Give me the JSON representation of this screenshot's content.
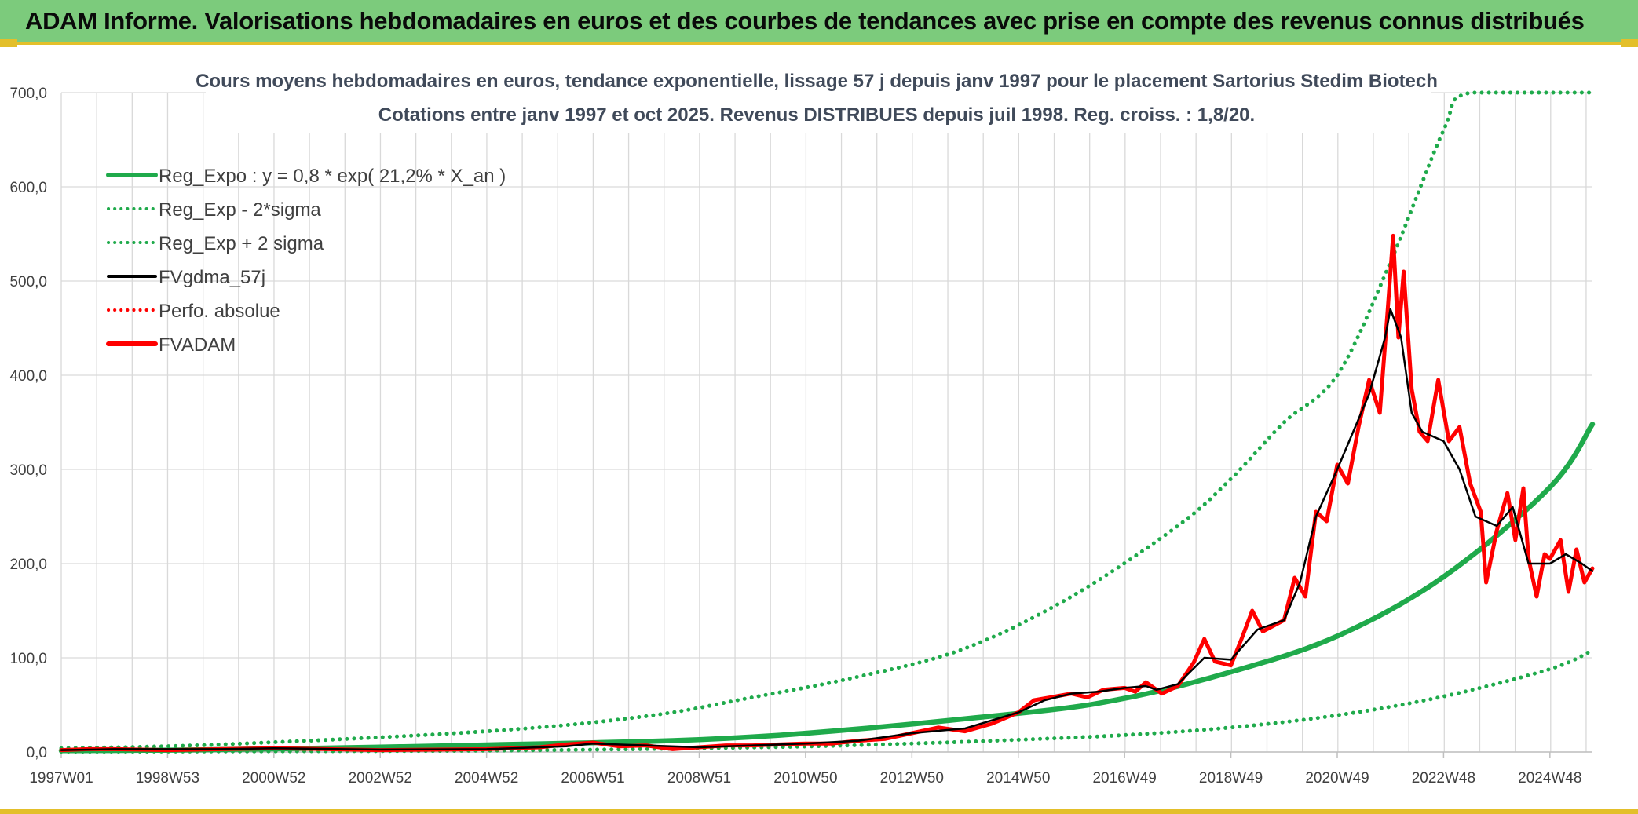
{
  "header": {
    "title": "ADAM Informe. Valorisations hebdomadaires en euros et des courbes de tendances avec prise en compte des revenus connus distribués"
  },
  "colors": {
    "header_bg": "#7ccb7c",
    "accent": "#e3bf2a",
    "reg_green": "#1faa4b",
    "price_red": "#ff0000",
    "smooth_black": "#000000"
  },
  "chart_data": {
    "type": "line",
    "title_line1": "Cours moyens hebdomadaires en euros, tendance exponentielle, lissage 57 j depuis janv 1997 pour le placement Sartorius Stedim Biotech",
    "title_line2": "Cotations entre janv 1997 et oct 2025. Revenus DISTRIBUES depuis juil 1998. Reg. croiss. : 1,8/20.",
    "xlabel": "",
    "ylabel": "",
    "ylim": [
      0,
      700
    ],
    "xlim": [
      1997.0,
      2025.8
    ],
    "y_ticks": [
      "0,0",
      "100,0",
      "200,0",
      "300,0",
      "400,0",
      "500,0",
      "600,0",
      "700,0"
    ],
    "x_ticks": [
      {
        "label": "1997W01",
        "x": 1997.0
      },
      {
        "label": "1998W53",
        "x": 1999.0
      },
      {
        "label": "2000W52",
        "x": 2001.0
      },
      {
        "label": "2002W52",
        "x": 2003.0
      },
      {
        "label": "2004W52",
        "x": 2005.0
      },
      {
        "label": "2006W51",
        "x": 2007.0
      },
      {
        "label": "2008W51",
        "x": 2009.0
      },
      {
        "label": "2010W50",
        "x": 2011.0
      },
      {
        "label": "2012W50",
        "x": 2013.0
      },
      {
        "label": "2014W50",
        "x": 2015.0
      },
      {
        "label": "2016W49",
        "x": 2017.0
      },
      {
        "label": "2018W49",
        "x": 2019.0
      },
      {
        "label": "2020W49",
        "x": 2021.0
      },
      {
        "label": "2022W48",
        "x": 2023.0
      },
      {
        "label": "2024W48",
        "x": 2025.0
      }
    ],
    "legend_position": "top-left",
    "legend": [
      {
        "label": "Reg_Expo : y = 0,8 * exp( 21,2% *  X_an )",
        "style": "solid-thick",
        "color": "#1faa4b"
      },
      {
        "label": "Reg_Exp - 2*sigma",
        "style": "dotted",
        "color": "#1faa4b"
      },
      {
        "label": "Reg_Exp + 2 sigma",
        "style": "dotted",
        "color": "#1faa4b"
      },
      {
        "label": "FVgdma_57j",
        "style": "solid",
        "color": "#000000"
      },
      {
        "label": "Perfo. absolue",
        "style": "dotted",
        "color": "#ff0000"
      },
      {
        "label": "FVADAM",
        "style": "solid-thick",
        "color": "#ff0000"
      }
    ],
    "series": [
      {
        "name": "Reg_Expo",
        "formula": "0.8*exp(0.212*(year-1996.3))",
        "points": [
          [
            1997.0,
            1.4
          ],
          [
            2000.0,
            2.6
          ],
          [
            2005.0,
            7.5
          ],
          [
            2010.0,
            16
          ],
          [
            2015.0,
            41
          ],
          [
            2017.0,
            57
          ],
          [
            2019.0,
            85
          ],
          [
            2021.0,
            123
          ],
          [
            2023.0,
            186
          ],
          [
            2025.0,
            281
          ],
          [
            2025.8,
            348
          ]
        ]
      },
      {
        "name": "Reg_Exp - 2*sigma",
        "points": [
          [
            1997.0,
            0.3
          ],
          [
            2005.0,
            1.5
          ],
          [
            2010.0,
            4.8
          ],
          [
            2013.0,
            9
          ],
          [
            2015.0,
            13
          ],
          [
            2017.0,
            18
          ],
          [
            2019.0,
            26
          ],
          [
            2021.0,
            39
          ],
          [
            2023.0,
            59
          ],
          [
            2025.0,
            88
          ],
          [
            2025.8,
            108
          ]
        ]
      },
      {
        "name": "Reg_Exp + 2 sigma",
        "points": [
          [
            1997.0,
            4
          ],
          [
            2000.0,
            8
          ],
          [
            2005.0,
            22
          ],
          [
            2008.0,
            38
          ],
          [
            2010.0,
            58
          ],
          [
            2012.0,
            80
          ],
          [
            2014.0,
            110
          ],
          [
            2016.0,
            165
          ],
          [
            2018.0,
            240
          ],
          [
            2019.0,
            290
          ],
          [
            2020.0,
            350
          ],
          [
            2021.0,
            400
          ],
          [
            2022.0,
            520
          ],
          [
            2023.0,
            660
          ],
          [
            2023.5,
            700
          ],
          [
            2025.8,
            700
          ]
        ]
      },
      {
        "name": "FVgdma_57j",
        "points": [
          [
            1997.0,
            2
          ],
          [
            1998.0,
            3
          ],
          [
            2000.0,
            3
          ],
          [
            2001.0,
            4
          ],
          [
            2003.0,
            2.5
          ],
          [
            2005.0,
            3
          ],
          [
            2006.5,
            6
          ],
          [
            2007.0,
            9
          ],
          [
            2008.0,
            7
          ],
          [
            2009.0,
            5
          ],
          [
            2010.0,
            7
          ],
          [
            2011.0,
            9
          ],
          [
            2012.0,
            12
          ],
          [
            2013.0,
            20
          ],
          [
            2014.0,
            25
          ],
          [
            2015.0,
            42
          ],
          [
            2015.5,
            55
          ],
          [
            2016.0,
            62
          ],
          [
            2016.5,
            64
          ],
          [
            2017.0,
            68
          ],
          [
            2017.4,
            70
          ],
          [
            2017.6,
            66
          ],
          [
            2018.0,
            72
          ],
          [
            2018.5,
            100
          ],
          [
            2019.0,
            98
          ],
          [
            2019.5,
            130
          ],
          [
            2020.0,
            140
          ],
          [
            2020.3,
            180
          ],
          [
            2020.6,
            250
          ],
          [
            2021.0,
            300
          ],
          [
            2021.3,
            340
          ],
          [
            2021.6,
            380
          ],
          [
            2021.9,
            440
          ],
          [
            2022.0,
            470
          ],
          [
            2022.2,
            440
          ],
          [
            2022.4,
            360
          ],
          [
            2022.6,
            340
          ],
          [
            2023.0,
            330
          ],
          [
            2023.3,
            300
          ],
          [
            2023.6,
            250
          ],
          [
            2024.0,
            240
          ],
          [
            2024.3,
            260
          ],
          [
            2024.6,
            200
          ],
          [
            2025.0,
            200
          ],
          [
            2025.3,
            210
          ],
          [
            2025.6,
            200
          ],
          [
            2025.8,
            192
          ]
        ]
      },
      {
        "name": "FVADAM",
        "points": [
          [
            1997.0,
            2
          ],
          [
            1997.5,
            3
          ],
          [
            1998.0,
            3
          ],
          [
            1999.0,
            2
          ],
          [
            2000.0,
            3
          ],
          [
            2001.0,
            4
          ],
          [
            2002.0,
            3
          ],
          [
            2003.0,
            2
          ],
          [
            2004.0,
            2.5
          ],
          [
            2005.0,
            3
          ],
          [
            2006.0,
            5
          ],
          [
            2006.5,
            8
          ],
          [
            2007.0,
            10
          ],
          [
            2007.5,
            6
          ],
          [
            2008.0,
            7
          ],
          [
            2008.5,
            3
          ],
          [
            2009.0,
            5
          ],
          [
            2009.5,
            7
          ],
          [
            2010.0,
            7
          ],
          [
            2010.5,
            8
          ],
          [
            2011.0,
            9
          ],
          [
            2011.5,
            9
          ],
          [
            2012.0,
            12
          ],
          [
            2012.5,
            14
          ],
          [
            2013.0,
            20
          ],
          [
            2013.5,
            26
          ],
          [
            2014.0,
            22
          ],
          [
            2014.5,
            30
          ],
          [
            2015.0,
            42
          ],
          [
            2015.3,
            55
          ],
          [
            2015.6,
            58
          ],
          [
            2016.0,
            62
          ],
          [
            2016.3,
            58
          ],
          [
            2016.6,
            66
          ],
          [
            2017.0,
            68
          ],
          [
            2017.2,
            64
          ],
          [
            2017.4,
            74
          ],
          [
            2017.7,
            62
          ],
          [
            2018.0,
            70
          ],
          [
            2018.3,
            95
          ],
          [
            2018.5,
            120
          ],
          [
            2018.7,
            96
          ],
          [
            2019.0,
            92
          ],
          [
            2019.2,
            120
          ],
          [
            2019.4,
            150
          ],
          [
            2019.6,
            128
          ],
          [
            2020.0,
            140
          ],
          [
            2020.2,
            185
          ],
          [
            2020.4,
            165
          ],
          [
            2020.6,
            255
          ],
          [
            2020.8,
            245
          ],
          [
            2021.0,
            305
          ],
          [
            2021.2,
            285
          ],
          [
            2021.4,
            345
          ],
          [
            2021.6,
            395
          ],
          [
            2021.8,
            360
          ],
          [
            2021.95,
            470
          ],
          [
            2022.05,
            548
          ],
          [
            2022.15,
            440
          ],
          [
            2022.25,
            510
          ],
          [
            2022.4,
            385
          ],
          [
            2022.55,
            340
          ],
          [
            2022.7,
            330
          ],
          [
            2022.9,
            395
          ],
          [
            2023.1,
            330
          ],
          [
            2023.3,
            345
          ],
          [
            2023.5,
            285
          ],
          [
            2023.7,
            255
          ],
          [
            2023.8,
            180
          ],
          [
            2024.0,
            235
          ],
          [
            2024.2,
            275
          ],
          [
            2024.35,
            225
          ],
          [
            2024.5,
            280
          ],
          [
            2024.6,
            205
          ],
          [
            2024.75,
            165
          ],
          [
            2024.9,
            210
          ],
          [
            2025.0,
            205
          ],
          [
            2025.2,
            225
          ],
          [
            2025.35,
            170
          ],
          [
            2025.5,
            215
          ],
          [
            2025.65,
            180
          ],
          [
            2025.8,
            195
          ]
        ]
      }
    ]
  }
}
